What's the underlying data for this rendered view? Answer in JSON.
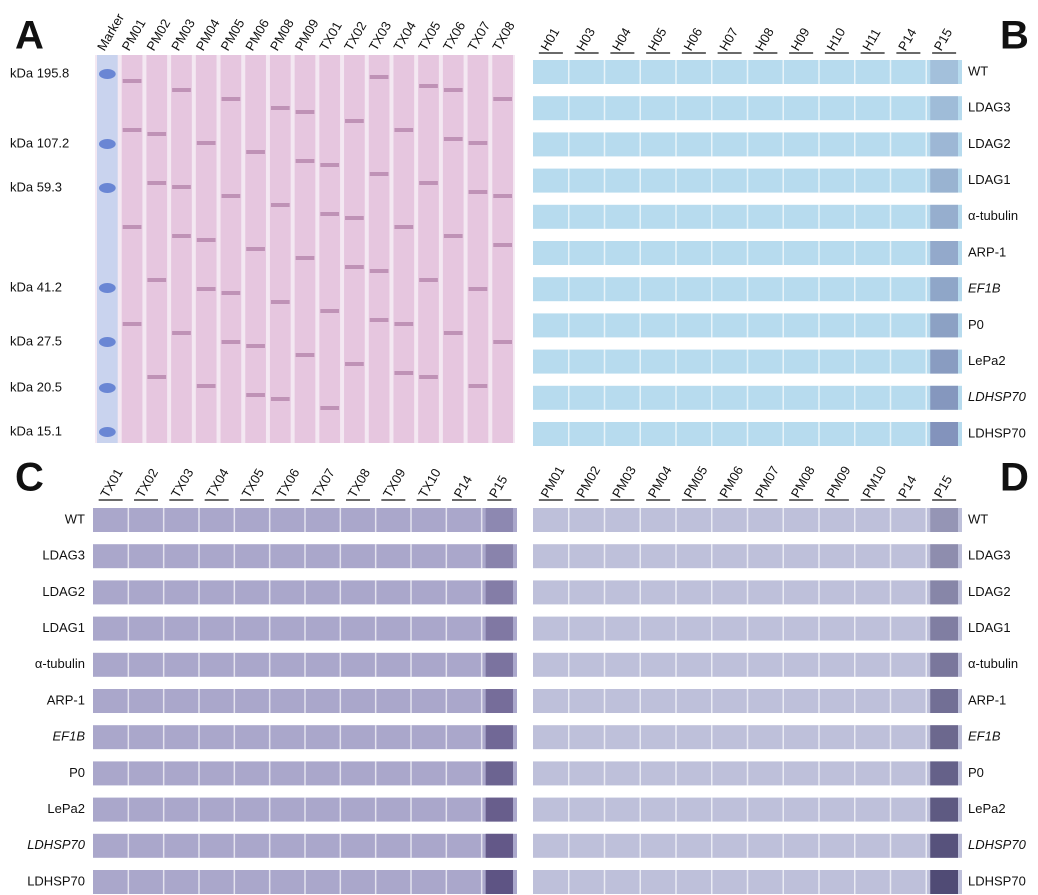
{
  "panels": [
    {
      "letter": "A",
      "lanes": [
        "Marker",
        "PM01",
        "PM02",
        "PM03",
        "PM04",
        "PM05",
        "PM06",
        "PM08",
        "PM09",
        "TX01",
        "TX02",
        "TX03",
        "TX04",
        "TX05",
        "TX06",
        "TX07",
        "TX08"
      ],
      "markers": [
        "kDa 195.8",
        "kDa 107.2",
        "kDa  59.3",
        "kDa  41.2",
        "kDa  27.5",
        "kDa  20.5",
        "kDa  15.1"
      ]
    },
    {
      "letter": "B",
      "lanes": [
        "H01",
        "H03",
        "H04",
        "H05",
        "H06",
        "H07",
        "H08",
        "H09",
        "H10",
        "H11",
        "P14",
        "P15"
      ],
      "rows": [
        "WT",
        "LDAG3",
        "LDAG2",
        "LDAG1",
        "α-tubulin",
        "ARP-1",
        "EF1B",
        "P0",
        "LePa2",
        "LDHSP70",
        "LDHSP70"
      ]
    },
    {
      "letter": "C",
      "lanes": [
        "TX01",
        "TX02",
        "TX03",
        "TX04",
        "TX05",
        "TX06",
        "TX07",
        "TX08",
        "TX09",
        "TX10",
        "P14",
        "P15"
      ],
      "rows": [
        "WT",
        "LDAG3",
        "LDAG2",
        "LDAG1",
        "α-tubulin",
        "ARP-1",
        "EF1B",
        "P0",
        "LePa2",
        "LDHSP70",
        "LDHSP70"
      ]
    },
    {
      "letter": "D",
      "lanes": [
        "PM01",
        "PM02",
        "PM03",
        "PM04",
        "PM05",
        "PM06",
        "PM07",
        "PM08",
        "PM09",
        "PM10",
        "P14",
        "P15"
      ],
      "rows": [
        "WT",
        "LDAG3",
        "LDAG2",
        "LDAG1",
        "α-tubulin",
        "ARP-1",
        "EF1B",
        "P0",
        "LePa2",
        "LDHSP70",
        "LDHSP70"
      ]
    }
  ]
}
